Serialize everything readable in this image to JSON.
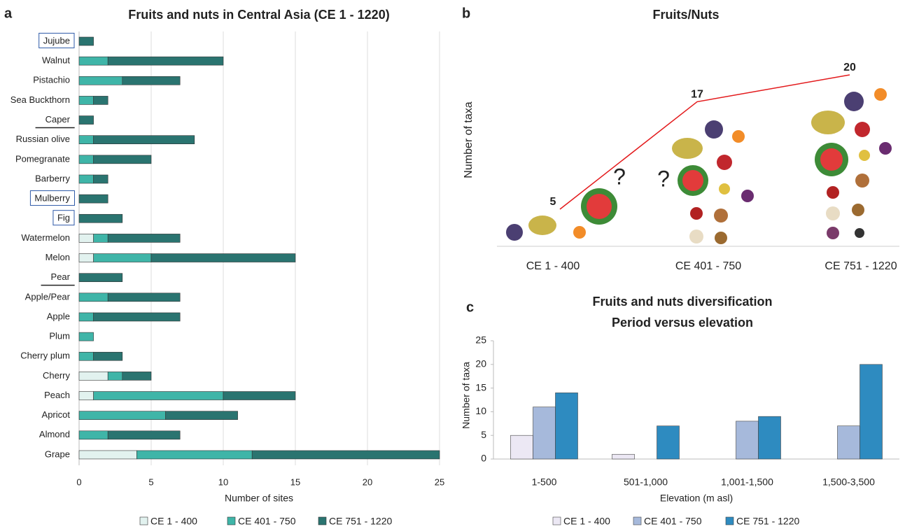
{
  "chart_data": [
    {
      "type": "stacked-barh",
      "panel": "a",
      "title": "Fruits and nuts in Central Asia (CE 1 - 1220)",
      "xlabel": "Number of sites",
      "categories": [
        "Jujube",
        "Walnut",
        "Pistachio",
        "Sea Buckthorn",
        "Caper",
        "Russian olive",
        "Pomegranate",
        "Barberry",
        "Mulberry",
        "Fig",
        "Watermelon",
        "Melon",
        "Pear",
        "Apple/Pear",
        "Apple",
        "Plum",
        "Cherry plum",
        "Cherry",
        "Peach",
        "Apricot",
        "Almond",
        "Grape"
      ],
      "boxed": [
        0,
        8,
        9
      ],
      "underlined": [
        4,
        12
      ],
      "series": [
        {
          "name": "CE 1 - 400",
          "color": "#e2f2ef",
          "values": [
            0,
            0,
            0,
            0,
            0,
            0,
            0,
            0,
            0,
            0,
            1,
            1,
            0,
            0,
            0,
            0,
            0,
            2,
            1,
            0,
            0,
            4
          ]
        },
        {
          "name": "CE 401 - 750",
          "color": "#3fb5a8",
          "values": [
            0,
            2,
            3,
            1,
            0,
            1,
            1,
            1,
            0,
            0,
            1,
            4,
            0,
            2,
            1,
            1,
            1,
            1,
            9,
            6,
            2,
            8
          ]
        },
        {
          "name": "CE 751 - 1220",
          "color": "#2a7470",
          "values": [
            1,
            8,
            4,
            1,
            1,
            7,
            4,
            1,
            2,
            3,
            5,
            10,
            3,
            5,
            6,
            0,
            2,
            2,
            5,
            5,
            5,
            13
          ]
        }
      ],
      "xlim": [
        0,
        25
      ],
      "xticks": [
        0,
        5,
        10,
        15,
        20,
        25
      ],
      "grid": true
    },
    {
      "type": "line",
      "panel": "b",
      "title": "Fruits/Nuts",
      "ylabel": "Number of taxa",
      "categories": [
        "CE 1 - 400",
        "CE 401 - 750",
        "CE 751 - 1220"
      ],
      "values": [
        5,
        17,
        20
      ],
      "color": "#e31a1c",
      "ylim": [
        0,
        20
      ],
      "annotations": [
        "?",
        "?"
      ]
    },
    {
      "type": "grouped-bar",
      "panel": "c",
      "title": "Fruits and nuts diversification",
      "subtitle": "Period versus elevation",
      "xlabel": "Elevation  (m asl)",
      "ylabel": "Number of taxa",
      "categories": [
        "1-500",
        "501-1,000",
        "1,001-1,500",
        "1,500-3,500"
      ],
      "series": [
        {
          "name": "CE 1 - 400",
          "color": "#ece8f4",
          "values": [
            5,
            1,
            0,
            0
          ]
        },
        {
          "name": "CE 401 - 750",
          "color": "#a6b9db",
          "values": [
            11,
            0,
            8,
            7
          ]
        },
        {
          "name": "CE 751 - 1220",
          "color": "#2e8bc0",
          "values": [
            14,
            7,
            9,
            20
          ]
        }
      ],
      "ylim": [
        0,
        25
      ],
      "yticks": [
        0,
        5,
        10,
        15,
        20,
        25
      ]
    }
  ]
}
